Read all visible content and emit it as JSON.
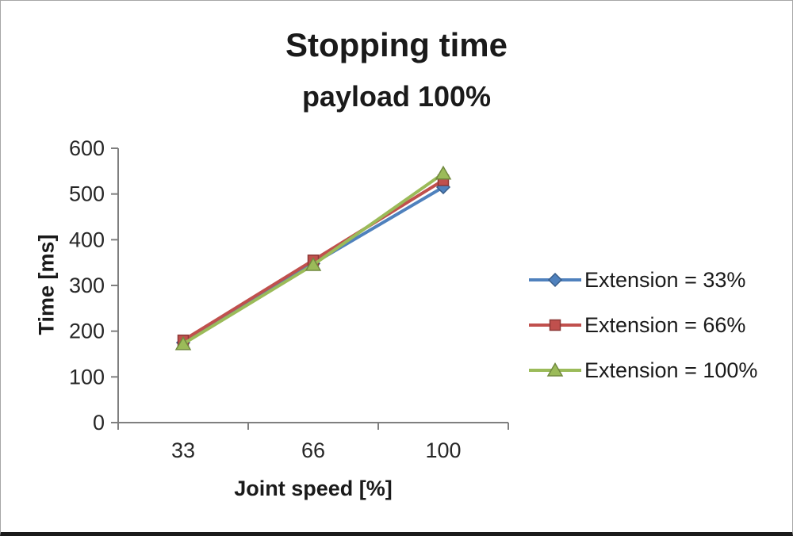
{
  "chart_data": {
    "type": "line",
    "title": "Stopping time",
    "subtitle": "payload 100%",
    "xlabel": "Joint speed [%]",
    "ylabel": "Time [ms]",
    "categories": [
      "33",
      "66",
      "100"
    ],
    "ylim": [
      0,
      600
    ],
    "ytick_step": 100,
    "grid": false,
    "legend_position": "right",
    "axis_color": "#7f7f7f",
    "series": [
      {
        "name": "Extension = 33%",
        "values": [
          175,
          348,
          515
        ],
        "color": "#4f81bd",
        "border": "#385d8a",
        "marker": "diamond"
      },
      {
        "name": "Extension = 66%",
        "values": [
          180,
          355,
          530
        ],
        "color": "#c0504d",
        "border": "#8c3836",
        "marker": "square"
      },
      {
        "name": "Extension = 100%",
        "values": [
          172,
          345,
          545
        ],
        "color": "#9bbb59",
        "border": "#71893f",
        "marker": "triangle"
      }
    ]
  }
}
